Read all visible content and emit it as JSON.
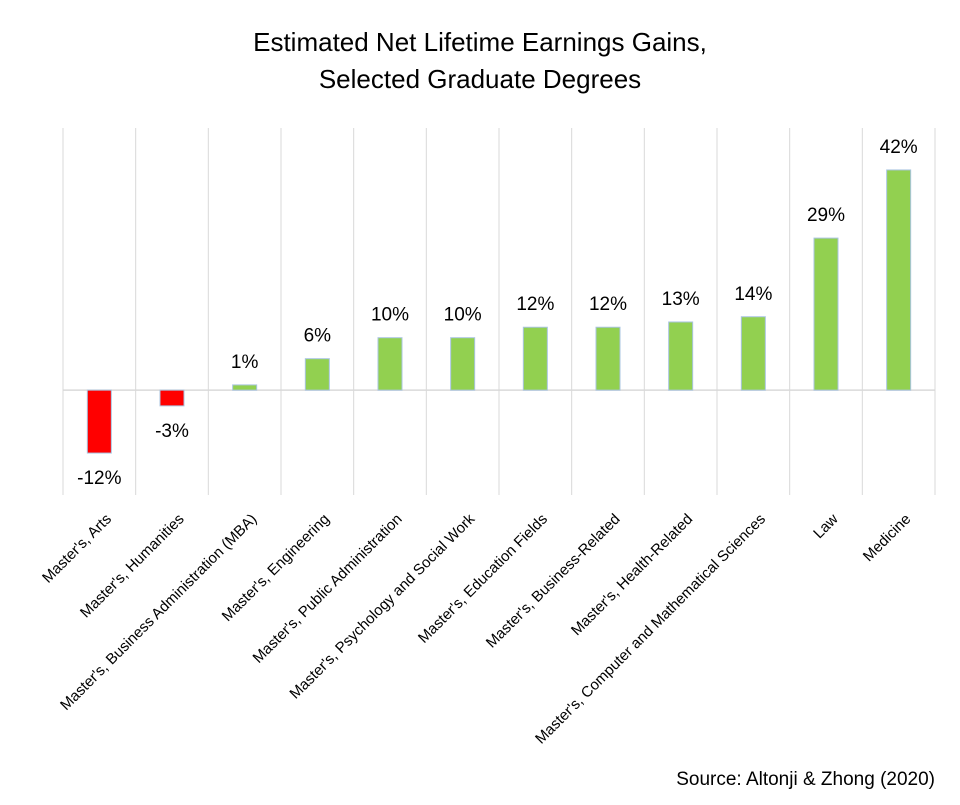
{
  "chart_data": {
    "type": "bar",
    "title": "Estimated Net Lifetime Earnings Gains,",
    "subtitle": "Selected Graduate Degrees",
    "categories": [
      "Master's, Arts",
      "Master's, Humanities",
      "Master's, Business Administration (MBA)",
      "Master's, Engineering",
      "Master's, Public Administration",
      "Master's, Psychology and Social Work",
      "Master's, Education Fields",
      "Master's, Business-Related",
      "Master's, Health-Related",
      "Master's, Computer and Mathematical Sciences",
      "Law",
      "Medicine"
    ],
    "values": [
      -12,
      -3,
      1,
      6,
      10,
      10,
      12,
      12,
      13,
      14,
      29,
      42
    ],
    "value_labels": [
      "-12%",
      "-3%",
      "1%",
      "6%",
      "10%",
      "10%",
      "12%",
      "12%",
      "13%",
      "14%",
      "29%",
      "42%"
    ],
    "color": "#92d050",
    "negative_color": "#ff0000",
    "ylim": [
      -20,
      50
    ],
    "source": "Source: Altonji & Zhong (2020)"
  }
}
